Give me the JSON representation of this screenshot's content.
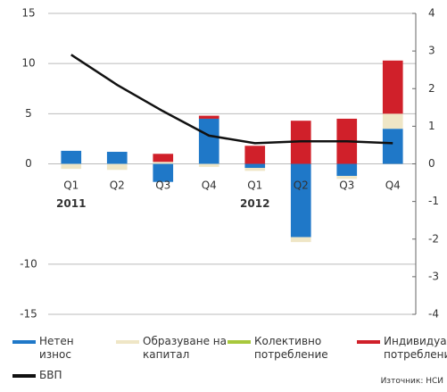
{
  "chart_data": {
    "type": "bar",
    "categories": [
      "Q1",
      "Q2",
      "Q3",
      "Q4",
      "Q1",
      "Q2",
      "Q3",
      "Q4"
    ],
    "year_labels": [
      {
        "index": 0,
        "label": "2011"
      },
      {
        "index": 4,
        "label": "2012"
      }
    ],
    "stacked": true,
    "series": [
      {
        "name": "Нетен износ",
        "color": "#1f78c8",
        "values": [
          1.3,
          1.2,
          -1.8,
          4.5,
          -0.4,
          -7.3,
          -1.2,
          3.5
        ]
      },
      {
        "name": "Образуване на капитал",
        "color": "#efe6c6",
        "values": [
          -0.5,
          -0.6,
          0.2,
          -0.3,
          -0.3,
          -0.5,
          -0.3,
          1.5
        ]
      },
      {
        "name": "Колективно потребление",
        "color": "#a8c83c",
        "values": [
          0,
          0,
          0,
          0,
          0,
          0,
          0,
          0
        ]
      },
      {
        "name": "Индивидуално потребление",
        "color": "#d0202a",
        "values": [
          0,
          0,
          0.8,
          0.3,
          1.8,
          4.3,
          4.5,
          5.3
        ]
      },
      {
        "name": "БВП",
        "color": "#111111",
        "type": "line",
        "axis": "y2",
        "values": [
          2.9,
          2.1,
          1.4,
          0.75,
          0.55,
          0.6,
          0.6,
          0.55
        ]
      }
    ],
    "ylim": [
      -15,
      15
    ],
    "yticks": [
      -15,
      -10,
      0,
      5,
      10,
      15
    ],
    "y2lim": [
      -4,
      4
    ],
    "y2ticks": [
      -4,
      -3,
      -2,
      -1,
      0,
      1,
      2,
      3,
      4
    ],
    "grid": true,
    "source": "Източник: НСИ"
  }
}
